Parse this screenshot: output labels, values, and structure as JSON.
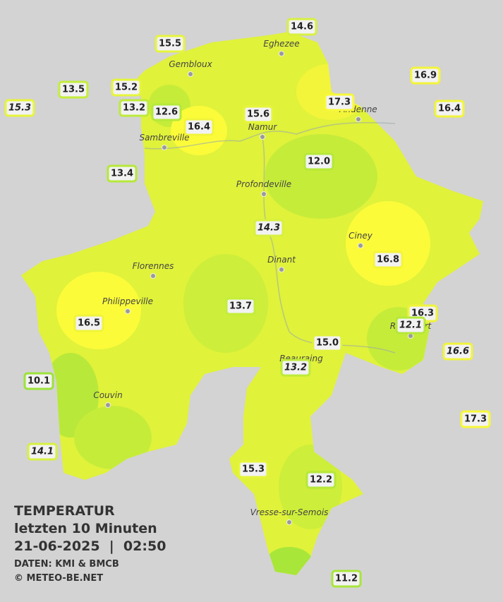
{
  "title": {
    "line1": "TEMPERATUR",
    "line2": "letzten 10 Minuten",
    "line3": "21-06-2025  |  02:50",
    "source": "DATEN: KMI & BMCB",
    "copyright": "© METEO-BE.NET"
  },
  "towns": [
    "Eghezee",
    "Gembloux",
    "Andenne",
    "Namur",
    "Sambreville",
    "Profondeville",
    "Ciney",
    "Dinant",
    "Florennes",
    "Philippeville",
    "Rochefort",
    "Beauraing",
    "Couvin",
    "Vresse-sur-Semois"
  ],
  "stations": [
    {
      "label": "14.6",
      "color": "#d8f040"
    },
    {
      "label": "15.5",
      "color": "#e6f53a"
    },
    {
      "label": "16.9",
      "color": "#f4f43a"
    },
    {
      "label": "15.2",
      "color": "#e6f53a"
    },
    {
      "label": "13.5",
      "color": "#c4ee3a"
    },
    {
      "label": "17.3",
      "color": "#f8f838"
    },
    {
      "label": "16.4",
      "color": "#f0f43a"
    },
    {
      "label": "15.3",
      "color": "#e6f53a",
      "italic": true
    },
    {
      "label": "13.2",
      "color": "#bdeb3a"
    },
    {
      "label": "12.6",
      "color": "#b5e83a"
    },
    {
      "label": "15.6",
      "color": "#e6f53a"
    },
    {
      "label": "16.4",
      "color": "#f0f43a"
    },
    {
      "label": "13.4",
      "color": "#b5e83a"
    },
    {
      "label": "12.0",
      "color": "#b5e83a"
    },
    {
      "label": "14.3",
      "color": "#d8f040",
      "italic": true
    },
    {
      "label": "16.8",
      "color": "#f4f43a"
    },
    {
      "label": "13.7",
      "color": "#c4ee3a"
    },
    {
      "label": "16.3",
      "color": "#f0f43a"
    },
    {
      "label": "12.1",
      "color": "#b5e83a",
      "italic": true
    },
    {
      "label": "16.5",
      "color": "#f0f43a"
    },
    {
      "label": "15.0",
      "color": "#e0f23a"
    },
    {
      "label": "16.6",
      "color": "#f0f43a",
      "italic": true
    },
    {
      "label": "13.2",
      "color": "#bdeb3a",
      "italic": true
    },
    {
      "label": "10.1",
      "color": "#9ce33a"
    },
    {
      "label": "17.3",
      "color": "#f8f838"
    },
    {
      "label": "14.1",
      "color": "#d8f040",
      "italic": true
    },
    {
      "label": "15.3",
      "color": "#e6f53a"
    },
    {
      "label": "12.2",
      "color": "#b5e83a"
    },
    {
      "label": "11.2",
      "color": "#a8e63a"
    }
  ]
}
